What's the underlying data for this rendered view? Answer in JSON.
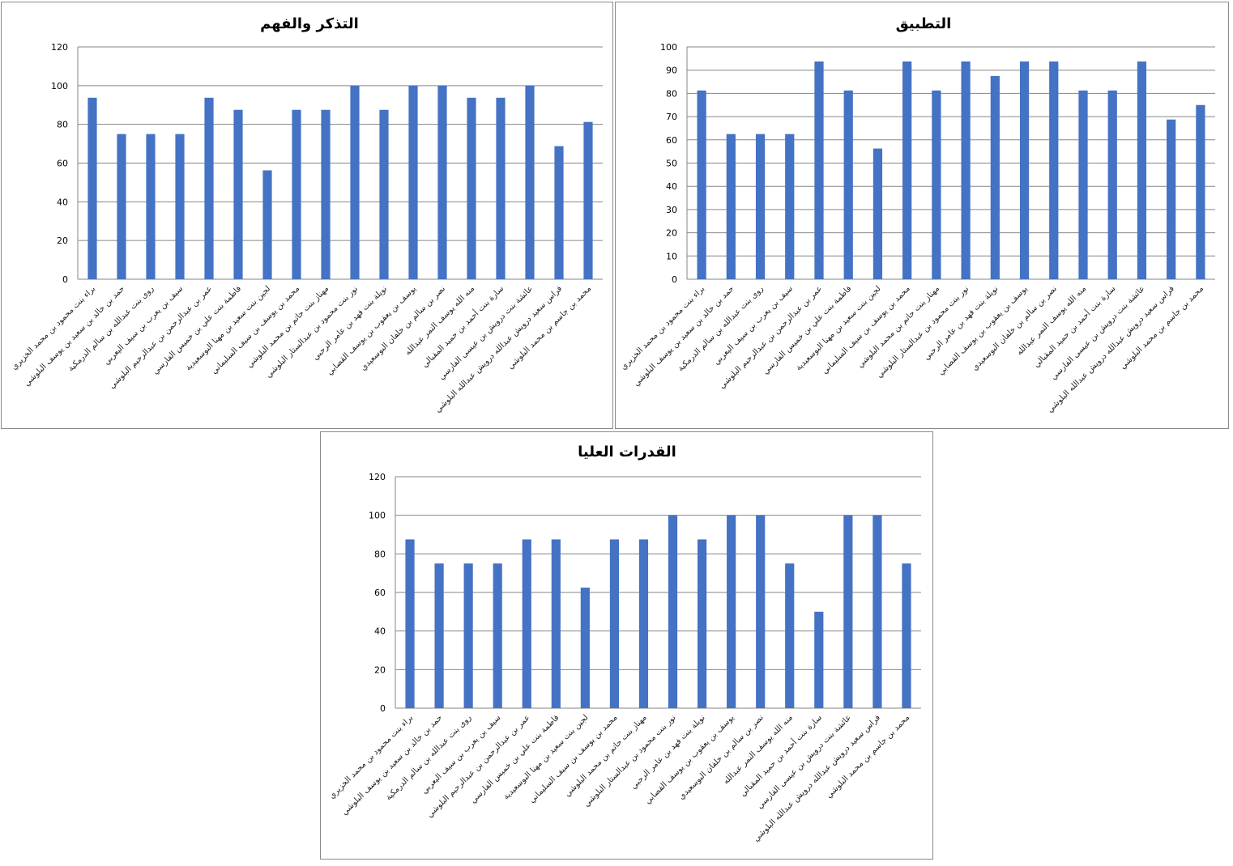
{
  "colors": {
    "bar": "#4472C4",
    "grid": "#868686",
    "axis": "#868686",
    "border": "#8a8a8a"
  },
  "chart_data": [
    {
      "type": "bar",
      "title": "التذكر والفهم",
      "xlabel": "",
      "ylabel": "",
      "ylim": [
        0,
        120
      ],
      "yticks": [
        0,
        20,
        40,
        60,
        80,
        100,
        120
      ],
      "grid": true,
      "categories": [
        "براء بنت محمود بن محمد الخزيري",
        "حمد بن خالد بن سعيد بن يوسف البلوشي",
        "روى بنت عبدالله بن سالم الدرمكية",
        "سيف بن يعرب بن سيف اليعربي",
        "عمر بن عبدالرحمن بن عبدالرحيم البلوشي",
        "فاطمة بنت علي بن خميس الفارسي",
        "لجين بنت سعيد بن مهنا البوسعيدية",
        "محمد بن يوسف بن سيف   السليماني",
        "مهناز بنت حاتم بن محمد البلوشي",
        "نور بنت محمود بن عبدالستار البلوشي",
        "نويلة بنت فهد بن عامر الرحبي",
        "يوسف بن يعقوب بن يوسف القصابي",
        "نصر بن سالم بن خلفان البوسعيدي",
        "منه الله يوسف النمر عبدالله",
        "سارة بنت أحمد بن حميد المقبالي",
        "عائشة بنت درويش بن عيسى الفارسي",
        "فراس سعيد درويش عبدالله درويش عبدالله البلوشي",
        "محمد بن جاسم بن محمد البلوشي"
      ],
      "values": [
        93.75,
        75,
        75,
        75,
        93.75,
        87.5,
        56.25,
        87.5,
        87.5,
        100,
        87.5,
        100,
        100,
        93.75,
        93.75,
        100,
        68.75,
        81.25
      ]
    },
    {
      "type": "bar",
      "title": "التطبيق",
      "xlabel": "",
      "ylabel": "",
      "ylim": [
        0,
        100
      ],
      "yticks": [
        0,
        10,
        20,
        30,
        40,
        50,
        60,
        70,
        80,
        90,
        100
      ],
      "grid": true,
      "categories": [
        "براء بنت محمود بن محمد الخزيري",
        "حمد بن خالد بن سعيد بن يوسف البلوشي",
        "روى بنت عبدالله بن سالم الدرمكية",
        "سيف بن يعرب بن سيف اليعربي",
        "عمر بن عبدالرحمن بن عبدالرحيم البلوشي",
        "فاطمة بنت علي بن خميس الفارسي",
        "لجين بنت سعيد بن مهنا البوسعيدية",
        "محمد بن يوسف بن سيف   السليماني",
        "مهناز بنت حاتم بن محمد البلوشي",
        "نور بنت محمود بن عبدالستار البلوشي",
        "نويلة بنت فهد بن عامر الرحبي",
        "يوسف بن يعقوب بن يوسف القصابي",
        "نصر بن سالم بن خلفان البوسعيدي",
        "منه الله يوسف النمر عبدالله",
        "سارة بنت أحمد بن حميد المقبالي",
        "عائشة بنت درويش بن عيسى الفارسي",
        "فراس سعيد درويش عبدالله درويش عبدالله البلوشي",
        "محمد بن جاسم بن محمد البلوشي"
      ],
      "values": [
        81.25,
        62.5,
        62.5,
        62.5,
        93.75,
        81.25,
        56.25,
        93.75,
        81.25,
        93.75,
        87.5,
        93.75,
        93.75,
        81.25,
        81.25,
        93.75,
        68.75,
        75
      ]
    },
    {
      "type": "bar",
      "title": "القدرات العليا",
      "xlabel": "",
      "ylabel": "",
      "ylim": [
        0,
        120
      ],
      "yticks": [
        0,
        20,
        40,
        60,
        80,
        100,
        120
      ],
      "grid": true,
      "categories": [
        "براء بنت محمود بن محمد الخزيري",
        "حمد بن خالد بن سعيد بن يوسف البلوشي",
        "روى بنت عبدالله بن سالم الدرمكية",
        "سيف بن يعرب بن سيف اليعربي",
        "عمر بن عبدالرحمن بن عبدالرحيم البلوشي",
        "فاطمة بنت علي بن خميس الفارسي",
        "لجين بنت سعيد بن مهنا البوسعيدية",
        "محمد بن يوسف بن سيف   السليماني",
        "مهناز بنت حاتم بن محمد البلوشي",
        "نور بنت محمود بن عبدالستار البلوشي",
        "نويلة بنت فهد بن عامر الرحبي",
        "يوسف بن يعقوب بن يوسف القصابي",
        "نصر بن سالم بن خلفان البوسعيدي",
        "منه الله يوسف النمر عبدالله",
        "سارة بنت أحمد بن حميد المقبالي",
        "عائشة بنت درويش بن عيسى الفارسي",
        "فراس سعيد درويش عبدالله درويش عبدالله البلوشي",
        "محمد بن جاسم بن محمد البلوشي"
      ],
      "values": [
        87.5,
        75,
        75,
        75,
        87.5,
        87.5,
        62.5,
        87.5,
        87.5,
        100,
        87.5,
        100,
        100,
        75,
        50,
        100,
        100,
        75
      ]
    }
  ]
}
